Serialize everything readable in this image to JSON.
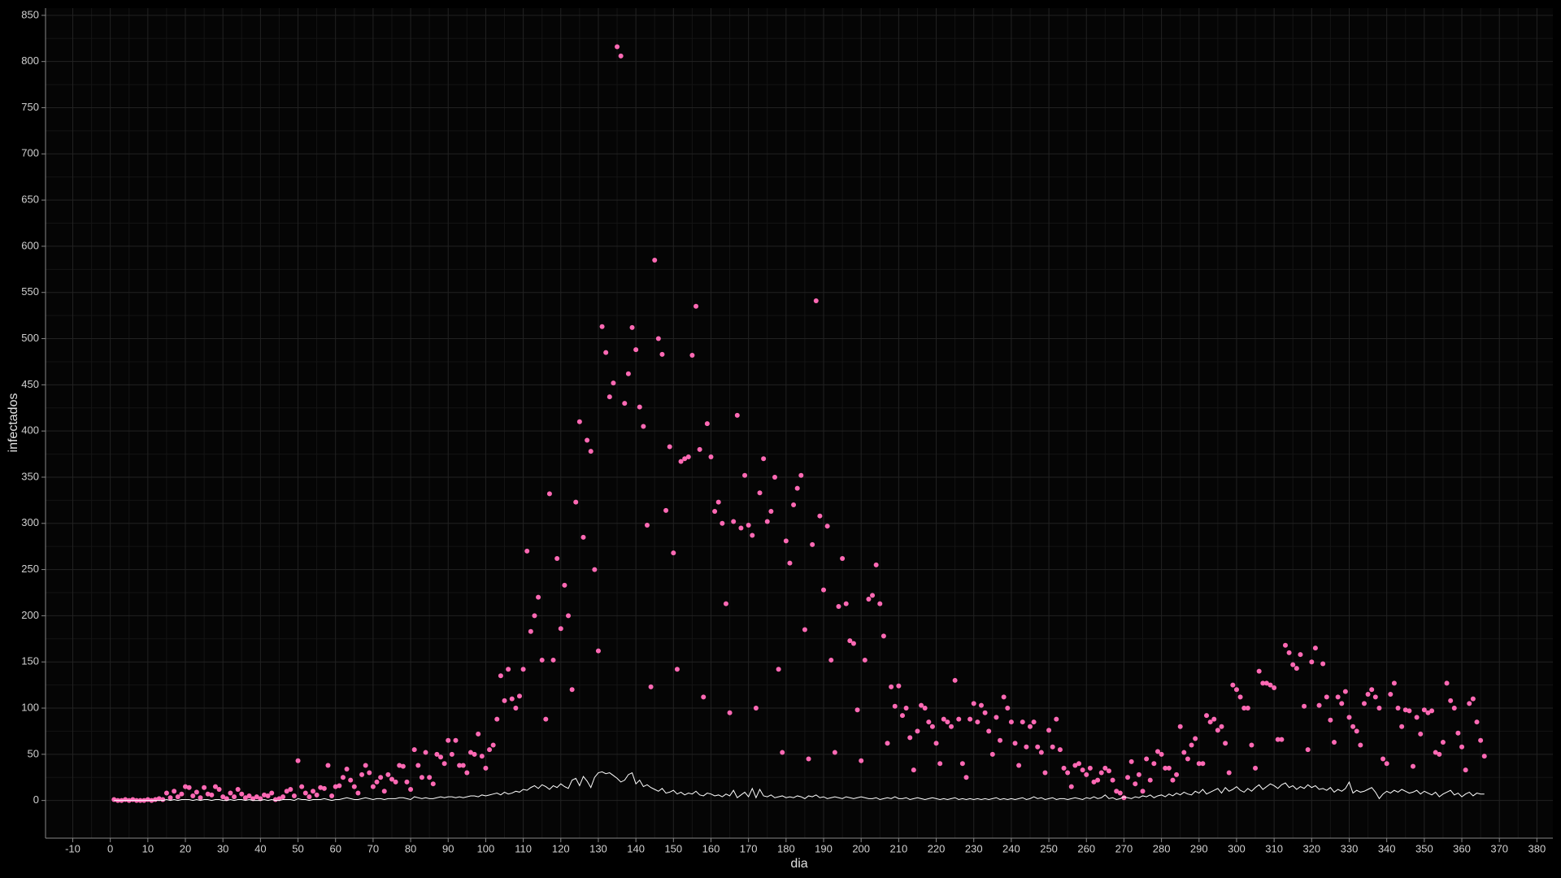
{
  "chart_data": {
    "type": "scatter",
    "x_label": "dia",
    "y_label": "infectados",
    "xlim": [
      -17.25,
      384.25
    ],
    "ylim": [
      -40.8,
      857.8
    ],
    "xticks": [
      -10,
      0,
      10,
      20,
      30,
      40,
      50,
      60,
      70,
      80,
      90,
      100,
      110,
      120,
      130,
      140,
      150,
      160,
      170,
      180,
      190,
      200,
      210,
      220,
      230,
      240,
      250,
      260,
      270,
      280,
      290,
      300,
      310,
      320,
      330,
      340,
      350,
      360,
      370,
      380
    ],
    "yticks": [
      0,
      50,
      100,
      150,
      200,
      250,
      300,
      350,
      400,
      450,
      500,
      550,
      600,
      650,
      700,
      750,
      800,
      850
    ],
    "grid": true,
    "x": [
      1,
      2,
      3,
      4,
      5,
      6,
      7,
      8,
      9,
      10,
      11,
      12,
      13,
      14,
      15,
      16,
      17,
      18,
      19,
      20,
      21,
      22,
      23,
      24,
      25,
      26,
      27,
      28,
      29,
      30,
      31,
      32,
      33,
      34,
      35,
      36,
      37,
      38,
      39,
      40,
      41,
      42,
      43,
      44,
      45,
      46,
      47,
      48,
      49,
      50,
      51,
      52,
      53,
      54,
      55,
      56,
      57,
      58,
      59,
      60,
      61,
      62,
      63,
      64,
      65,
      66,
      67,
      68,
      69,
      70,
      71,
      72,
      73,
      74,
      75,
      76,
      77,
      78,
      79,
      80,
      81,
      82,
      83,
      84,
      85,
      86,
      87,
      88,
      89,
      90,
      91,
      92,
      93,
      94,
      95,
      96,
      97,
      98,
      99,
      100,
      101,
      102,
      103,
      104,
      105,
      106,
      107,
      108,
      109,
      110,
      111,
      112,
      113,
      114,
      115,
      116,
      117,
      118,
      119,
      120,
      121,
      122,
      123,
      124,
      125,
      126,
      127,
      128,
      129,
      130,
      131,
      132,
      133,
      134,
      135,
      136,
      137,
      138,
      139,
      140,
      141,
      142,
      143,
      144,
      145,
      146,
      147,
      148,
      149,
      150,
      151,
      152,
      153,
      154,
      155,
      156,
      157,
      158,
      159,
      160,
      161,
      162,
      163,
      164,
      165,
      166,
      167,
      168,
      169,
      170,
      171,
      172,
      173,
      174,
      175,
      176,
      177,
      178,
      179,
      180,
      181,
      182,
      183,
      184,
      185,
      186,
      187,
      188,
      189,
      190,
      191,
      192,
      193,
      194,
      195,
      196,
      197,
      198,
      199,
      200,
      201,
      202,
      203,
      204,
      205,
      206,
      207,
      208,
      209,
      210,
      211,
      212,
      213,
      214,
      215,
      216,
      217,
      218,
      219,
      220,
      221,
      222,
      223,
      224,
      225,
      226,
      227,
      228,
      229,
      230,
      231,
      232,
      233,
      234,
      235,
      236,
      237,
      238,
      239,
      240,
      241,
      242,
      243,
      244,
      245,
      246,
      247,
      248,
      249,
      250,
      251,
      252,
      253,
      254,
      255,
      256,
      257,
      258,
      259,
      260,
      261,
      262,
      263,
      264,
      265,
      266,
      267,
      268,
      269,
      270,
      271,
      272,
      273,
      274,
      275,
      276,
      277,
      278,
      279,
      280,
      281,
      282,
      283,
      284,
      285,
      286,
      287,
      288,
      289,
      290,
      291,
      292,
      293,
      294,
      295,
      296,
      297,
      298,
      299,
      300,
      301,
      302,
      303,
      304,
      305,
      306,
      307,
      308,
      309,
      310,
      311,
      312,
      313,
      314,
      315,
      316,
      317,
      318,
      319,
      320,
      321,
      322,
      323,
      324,
      325,
      326,
      327,
      328,
      329,
      330,
      331,
      332,
      333,
      334,
      335,
      336,
      337,
      338,
      339,
      340,
      341,
      342,
      343,
      344,
      345,
      346,
      347,
      348,
      349,
      350,
      351,
      352,
      353,
      354,
      355,
      356,
      357,
      358,
      359,
      360,
      361,
      362,
      363,
      364,
      365,
      366
    ],
    "series": [
      {
        "type": "scatter",
        "color": "#ff69b4",
        "values": [
          1,
          0,
          0,
          1,
          0,
          1,
          0,
          0,
          0,
          1,
          0,
          1,
          2,
          1,
          8,
          3,
          10,
          4,
          7,
          15,
          14,
          5,
          9,
          3,
          14,
          7,
          6,
          15,
          12,
          4,
          2,
          8,
          4,
          12,
          7,
          3,
          5,
          2,
          4,
          2,
          6,
          5,
          8,
          1,
          2,
          4,
          10,
          12,
          5,
          43,
          15,
          8,
          4,
          10,
          6,
          14,
          13,
          38,
          5,
          15,
          16,
          25,
          34,
          22,
          15,
          8,
          28,
          38,
          30,
          15,
          20,
          25,
          10,
          28,
          23,
          20,
          38,
          37,
          20,
          12,
          55,
          38,
          25,
          52,
          25,
          18,
          50,
          47,
          40,
          65,
          50,
          65,
          38,
          38,
          30,
          52,
          50,
          72,
          48,
          35,
          55,
          60,
          88,
          135,
          108,
          142,
          110,
          100,
          113,
          142,
          270,
          183,
          200,
          220,
          152,
          88,
          332,
          152,
          262,
          186,
          233,
          200,
          120,
          323,
          410,
          285,
          390,
          378,
          250,
          162,
          513,
          485,
          437,
          452,
          816,
          806,
          430,
          462,
          512,
          488,
          426,
          405,
          298,
          123,
          585,
          500,
          483,
          314,
          383,
          268,
          142,
          367,
          370,
          372,
          482,
          535,
          380,
          112,
          408,
          372,
          313,
          323,
          300,
          213,
          95,
          302,
          417,
          295,
          352,
          298,
          287,
          100,
          333,
          370,
          302,
          313,
          350,
          142,
          52,
          281,
          257,
          320,
          338,
          352,
          185,
          45,
          277,
          541,
          308,
          228,
          297,
          152,
          52,
          210,
          262,
          213,
          173,
          170,
          98,
          43,
          152,
          218,
          222,
          255,
          213,
          178,
          62,
          123,
          102,
          124,
          92,
          100,
          68,
          33,
          75,
          103,
          100,
          85,
          80,
          62,
          40,
          88,
          85,
          80,
          130,
          88,
          40,
          25,
          88,
          105,
          85,
          103,
          95,
          75,
          50,
          90,
          65,
          112,
          100,
          85,
          62,
          38,
          85,
          58,
          80,
          85,
          58,
          52,
          30,
          76,
          58,
          88,
          55,
          35,
          30,
          15,
          38,
          40,
          33,
          28,
          35,
          20,
          22,
          30,
          35,
          32,
          22,
          10,
          8,
          3,
          25,
          42,
          18,
          28,
          10,
          45,
          22,
          40,
          53,
          50,
          35,
          35,
          22,
          28,
          80,
          52,
          45,
          60,
          67,
          40,
          40,
          92,
          85,
          88,
          76,
          80,
          62,
          30,
          125,
          120,
          112,
          100,
          100,
          60,
          35,
          140,
          127,
          127,
          125,
          122,
          66,
          66,
          168,
          160,
          147,
          143,
          158,
          102,
          55,
          150,
          165,
          103,
          148,
          112,
          87,
          63,
          112,
          105,
          118,
          90,
          80,
          75,
          60,
          105,
          115,
          120,
          112,
          100,
          45,
          40,
          115,
          127,
          100,
          80,
          98,
          97,
          37,
          90,
          72,
          98,
          95,
          97,
          52,
          50,
          63,
          127,
          108,
          100,
          73,
          58,
          33,
          105,
          110,
          85,
          65,
          48
        ]
      },
      {
        "type": "line",
        "color": "#ffffff",
        "values": [
          0,
          0,
          0,
          0,
          0,
          0,
          0,
          0,
          0,
          0,
          0,
          0,
          0,
          0,
          1,
          0,
          1,
          0,
          1,
          1,
          1,
          0,
          1,
          0,
          1,
          1,
          0,
          1,
          1,
          0,
          0,
          1,
          0,
          1,
          1,
          0,
          1,
          0,
          0,
          0,
          1,
          0,
          1,
          0,
          0,
          1,
          1,
          1,
          0,
          2,
          1,
          1,
          0,
          1,
          1,
          1,
          2,
          1,
          0,
          1,
          1,
          2,
          3,
          2,
          1,
          1,
          2,
          3,
          2,
          1,
          2,
          2,
          1,
          2,
          2,
          2,
          3,
          3,
          2,
          1,
          4,
          3,
          2,
          3,
          2,
          2,
          3,
          4,
          3,
          4,
          4,
          3,
          4,
          3,
          4,
          5,
          5,
          4,
          6,
          5,
          6,
          7,
          8,
          6,
          9,
          7,
          8,
          10,
          9,
          12,
          11,
          14,
          16,
          13,
          17,
          15,
          12,
          16,
          14,
          18,
          15,
          13,
          22,
          24,
          16,
          26,
          21,
          14,
          25,
          30,
          31,
          29,
          30,
          27,
          24,
          20,
          22,
          28,
          30,
          18,
          22,
          15,
          17,
          14,
          12,
          10,
          13,
          8,
          9,
          11,
          7,
          9,
          6,
          8,
          7,
          10,
          6,
          5,
          8,
          7,
          5,
          6,
          4,
          7,
          5,
          11,
          3,
          6,
          9,
          4,
          13,
          3,
          12,
          5,
          4,
          6,
          3,
          4,
          5,
          3,
          4,
          3,
          5,
          4,
          2,
          5,
          4,
          6,
          3,
          4,
          2,
          3,
          4,
          3,
          2,
          4,
          3,
          2,
          3,
          4,
          3,
          2,
          2,
          3,
          1,
          2,
          3,
          2,
          4,
          2,
          2,
          3,
          1,
          2,
          3,
          2,
          1,
          2,
          3,
          2,
          1,
          2,
          1,
          2,
          3,
          1,
          2,
          1,
          2,
          1,
          2,
          1,
          2,
          1,
          2,
          3,
          1,
          2,
          1,
          2,
          1,
          2,
          3,
          1,
          2,
          4,
          2,
          3,
          1,
          2,
          3,
          1,
          2,
          2,
          1,
          2,
          3,
          2,
          1,
          3,
          2,
          4,
          2,
          3,
          6,
          2,
          3,
          1,
          2,
          4,
          3,
          2,
          4,
          3,
          5,
          4,
          6,
          3,
          5,
          6,
          4,
          7,
          5,
          8,
          6,
          9,
          7,
          6,
          10,
          8,
          12,
          7,
          9,
          11,
          13,
          8,
          14,
          10,
          12,
          15,
          11,
          9,
          13,
          10,
          14,
          17,
          12,
          15,
          18,
          16,
          13,
          17,
          19,
          14,
          16,
          12,
          15,
          13,
          17,
          14,
          16,
          12,
          13,
          11,
          14,
          9,
          12,
          10,
          13,
          20,
          8,
          11,
          9,
          10,
          12,
          14,
          9,
          2,
          7,
          10,
          8,
          11,
          9,
          12,
          10,
          8,
          9,
          11,
          7,
          10,
          8,
          6,
          9,
          4,
          7,
          9,
          11,
          6,
          8,
          4,
          7,
          9,
          5,
          8,
          7,
          7
        ]
      }
    ]
  }
}
